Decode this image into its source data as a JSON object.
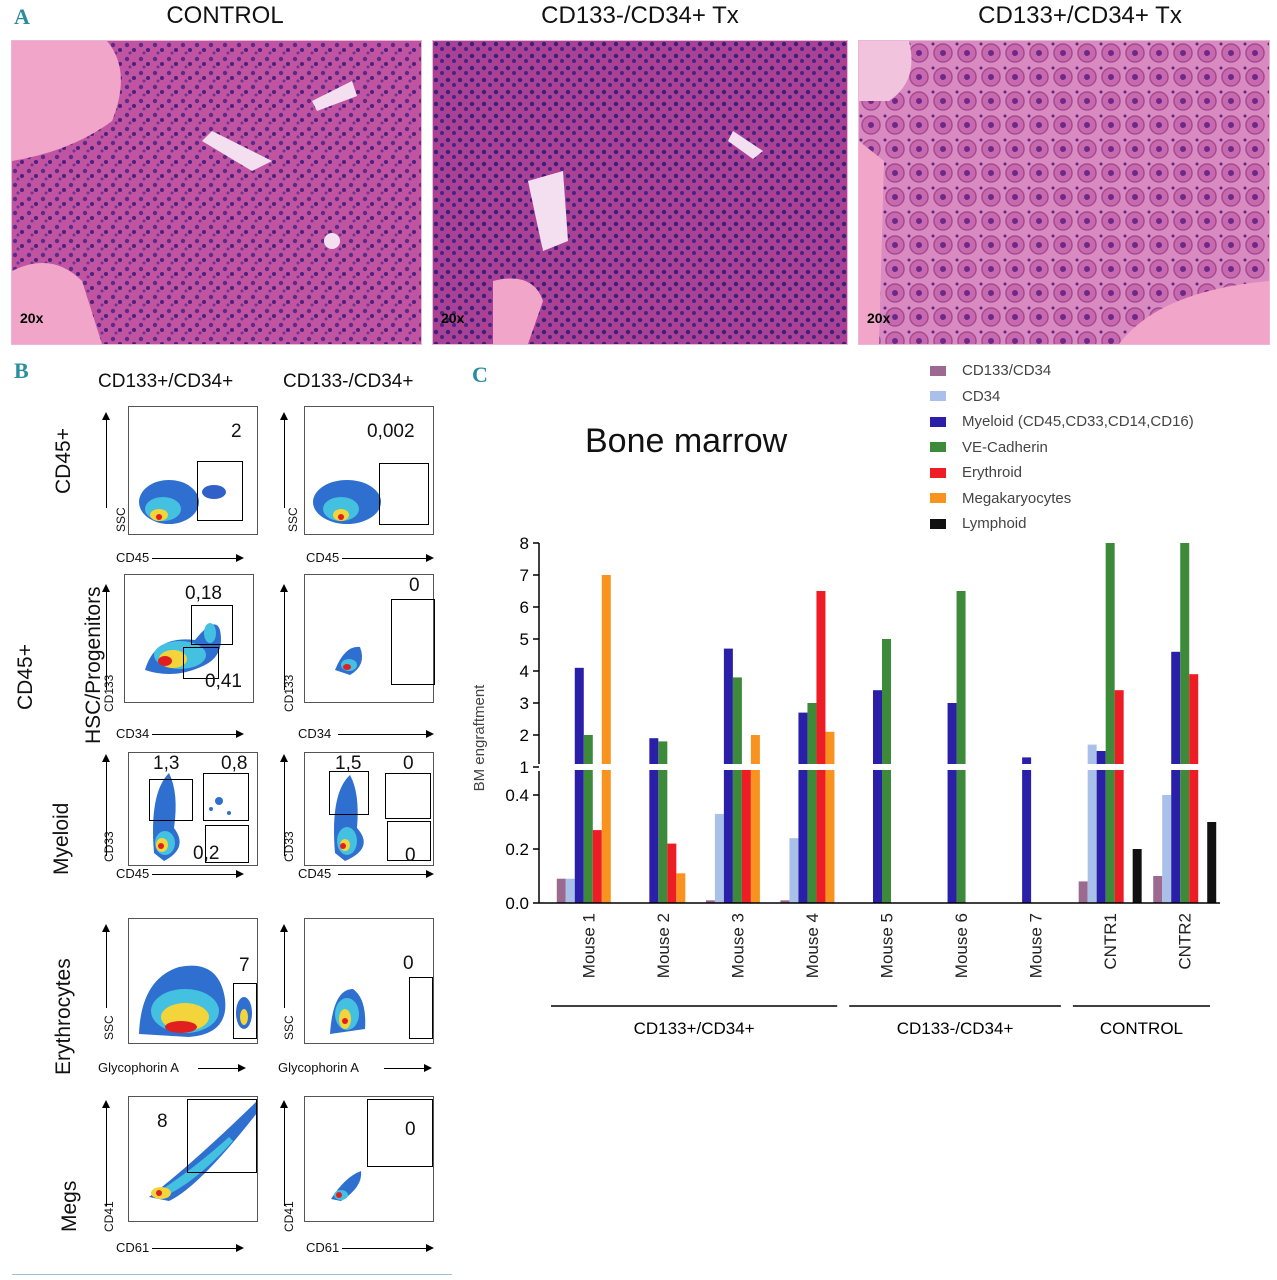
{
  "panels": {
    "a": "A",
    "b": "B",
    "c": "C"
  },
  "histology": [
    {
      "title": "CONTROL",
      "magnification": "20x",
      "tone": "#cc5aa4"
    },
    {
      "title": "CD133-/CD34+ Tx",
      "magnification": "20x",
      "tone": "#b04a9a"
    },
    {
      "title": "CD133+/CD34+ Tx",
      "magnification": "20x",
      "tone": "#d07ab4"
    }
  ],
  "flow": {
    "columns": [
      "CD133+/CD34+",
      "CD133-/CD34+"
    ],
    "group_label": "CD45+",
    "rows": [
      {
        "label": "CD45+",
        "xlabel": "CD45",
        "ylabel": "SSC",
        "values": [
          [
            "2"
          ],
          [
            "0,002"
          ]
        ]
      },
      {
        "label": "HSC/Progenitors",
        "xlabel": "CD34",
        "ylabel": "CD133",
        "values": [
          [
            "0,18",
            "0,41"
          ],
          [
            "0"
          ]
        ]
      },
      {
        "label": "Myeloid",
        "xlabel": "CD45",
        "ylabel": "CD33",
        "values": [
          [
            "1,3",
            "0,8",
            "0,2"
          ],
          [
            "1,5",
            "0",
            "0"
          ]
        ]
      },
      {
        "label": "Erythrocytes",
        "xlabel": "Glycophorin A",
        "ylabel": "SSC",
        "values": [
          [
            "7"
          ],
          [
            "0"
          ]
        ]
      },
      {
        "label": "Megs",
        "xlabel": "CD61",
        "ylabel": "CD41",
        "values": [
          [
            "8"
          ],
          [
            "0"
          ]
        ]
      }
    ]
  },
  "chart_data": {
    "type": "bar",
    "title": "Bone marrow",
    "ylabel": "BM engraftment",
    "xlabel": "",
    "y_axis_break": {
      "lower_range": [
        0,
        0.5
      ],
      "upper_range": [
        1,
        8
      ]
    },
    "lower_ticks": [
      "0.0",
      "0.2",
      "0.4"
    ],
    "upper_ticks": [
      "1",
      "2",
      "3",
      "4",
      "5",
      "6",
      "7",
      "8"
    ],
    "categories": [
      "Mouse 1",
      "Mouse 2",
      "Mouse 3",
      "Mouse 4",
      "Mouse 5",
      "Mouse 6",
      "Mouse 7",
      "CNTR1",
      "CNTR2"
    ],
    "groups": [
      {
        "label": "CD133+/CD34+",
        "members": [
          "Mouse 1",
          "Mouse 2",
          "Mouse 3",
          "Mouse 4"
        ]
      },
      {
        "label": "CD133-/CD34+",
        "members": [
          "Mouse 5",
          "Mouse 6",
          "Mouse 7"
        ]
      },
      {
        "label": "CONTROL",
        "members": [
          "CNTR1",
          "CNTR2"
        ]
      }
    ],
    "legend_position": "top-right",
    "series": [
      {
        "name": "CD133/CD34",
        "color": "#9c6a90",
        "values": [
          0.09,
          0,
          0.01,
          0.01,
          0,
          0,
          0,
          0.08,
          0.1
        ]
      },
      {
        "name": "CD34",
        "color": "#a9c0e8",
        "values": [
          0.09,
          0,
          0.33,
          0.24,
          0,
          0,
          0,
          1.7,
          0.4
        ]
      },
      {
        "name": "Myeloid (CD45,CD33,CD14,CD16)",
        "color": "#2a1fa8",
        "values": [
          4.1,
          1.9,
          4.7,
          2.7,
          3.4,
          3.0,
          1.3,
          1.5,
          4.6
        ]
      },
      {
        "name": "VE-Cadherin",
        "color": "#3c8a3a",
        "values": [
          2.0,
          1.8,
          3.8,
          3.0,
          5.0,
          6.5,
          0,
          8.0,
          8.0
        ]
      },
      {
        "name": "Erythroid",
        "color": "#ee1c24",
        "values": [
          0.27,
          0.22,
          0.7,
          6.5,
          0,
          0,
          0,
          3.4,
          3.9
        ]
      },
      {
        "name": "Megakaryocytes",
        "color": "#f7931e",
        "values": [
          7.0,
          0.11,
          2.0,
          2.1,
          0,
          0,
          0,
          0,
          0
        ]
      },
      {
        "name": "Lymphoid",
        "color": "#111111",
        "values": [
          0,
          0,
          0,
          0,
          0,
          0,
          0,
          0.2,
          0.3
        ]
      }
    ]
  }
}
